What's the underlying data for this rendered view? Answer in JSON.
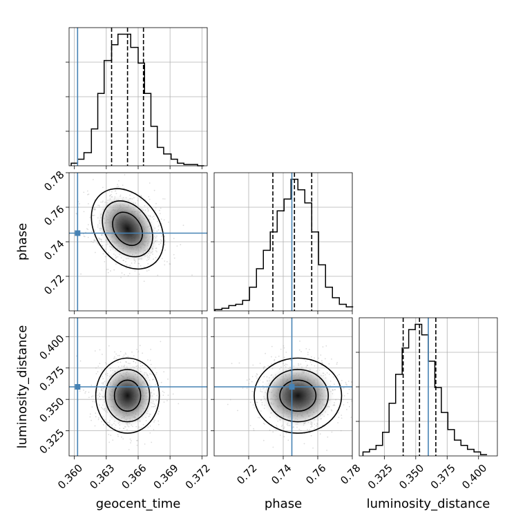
{
  "chart_data": {
    "type": "corner",
    "parameters": [
      "geocent_time",
      "phase",
      "luminosity_distance"
    ],
    "ranges": {
      "geocent_time": [
        0.3595,
        0.3725
      ],
      "phase": [
        0.7,
        0.78
      ],
      "luminosity_distance": [
        0.305,
        0.415
      ]
    },
    "ticks": {
      "geocent_time": [
        0.36,
        0.363,
        0.366,
        0.369,
        0.372
      ],
      "phase": [
        0.72,
        0.74,
        0.76,
        0.78
      ],
      "luminosity_distance": [
        0.325,
        0.35,
        0.375,
        0.4
      ]
    },
    "tick_labels": {
      "geocent_time": [
        "0.360",
        "0.363",
        "0.366",
        "0.369",
        "0.372"
      ],
      "phase": [
        "0.72",
        "0.74",
        "0.76",
        "0.78"
      ],
      "luminosity_distance": [
        "0.325",
        "0.350",
        "0.375",
        "0.400"
      ]
    },
    "truths": {
      "geocent_time": 0.3603,
      "phase": 0.745,
      "luminosity_distance": 0.36
    },
    "quantiles": {
      "geocent_time": [
        0.3635,
        0.365,
        0.3665
      ],
      "phase": [
        0.734,
        0.7465,
        0.7565
      ],
      "luminosity_distance": [
        0.34,
        0.353,
        0.366
      ]
    },
    "histograms": {
      "geocent_time": {
        "edges": [
          0.3597,
          0.3603,
          0.3609,
          0.3616,
          0.3622,
          0.3628,
          0.3635,
          0.3641,
          0.3647,
          0.3653,
          0.366,
          0.3666,
          0.3672,
          0.3678,
          0.3684,
          0.3691,
          0.3697,
          0.3703,
          0.3709,
          0.3716,
          0.3722
        ],
        "counts": [
          2,
          5,
          10,
          28,
          55,
          80,
          92,
          100,
          100,
          90,
          78,
          55,
          30,
          14,
          9,
          5,
          2,
          1,
          1,
          0
        ]
      },
      "phase": {
        "edges": [
          0.7005,
          0.7045,
          0.7085,
          0.7125,
          0.7165,
          0.7205,
          0.7245,
          0.7285,
          0.7325,
          0.7365,
          0.7405,
          0.7445,
          0.7485,
          0.7525,
          0.7565,
          0.7605,
          0.7645,
          0.7685,
          0.7725,
          0.7765,
          0.7805
        ],
        "counts": [
          1,
          2,
          4,
          5,
          8,
          18,
          32,
          46,
          60,
          76,
          85,
          100,
          92,
          82,
          60,
          35,
          18,
          10,
          5,
          3
        ]
      },
      "luminosity_distance": {
        "edges": [
          0.308,
          0.3132,
          0.3184,
          0.3236,
          0.3288,
          0.334,
          0.3392,
          0.3444,
          0.3496,
          0.3548,
          0.36,
          0.3652,
          0.3704,
          0.3756,
          0.3808,
          0.386,
          0.3912,
          0.3964,
          0.4016,
          0.4068
        ],
        "counts": [
          3,
          5,
          8,
          18,
          40,
          62,
          82,
          96,
          100,
          92,
          72,
          52,
          33,
          20,
          12,
          8,
          5,
          3,
          1
        ]
      }
    },
    "density_peaks": {
      "phase_vs_geocent_time": {
        "x": 0.365,
        "y": 0.7475
      },
      "luminosity_distance_vs_geocent_time": {
        "x": 0.365,
        "y": 0.353
      },
      "luminosity_distance_vs_phase": {
        "x": 0.7485,
        "y": 0.353
      }
    },
    "grid": true
  }
}
